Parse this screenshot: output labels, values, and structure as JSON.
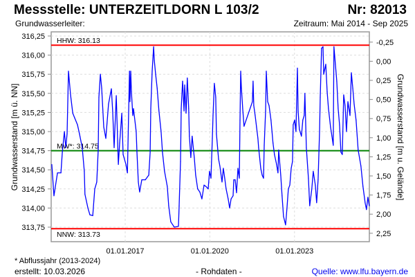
{
  "header": {
    "title": "Messstelle: UNTERZEITLDORN L 103/2",
    "number": "Nr: 82013",
    "aquifer": "Grundwasserleiter:",
    "period": "Zeitraum: Mai 2014 - Sep 2025"
  },
  "footer": {
    "note": "* Abflussjahr (2013-2024)",
    "created": "erstellt:  10.03.2026",
    "raw": "- Rohdaten -",
    "source": "Quelle: www.lfu.bayern.de"
  },
  "colors": {
    "series": "#0000ff",
    "hhw": "#ff0000",
    "nnw": "#ff0000",
    "mw": "#008000",
    "source_link": "#0000ee"
  },
  "chart_data": {
    "type": "line",
    "xlabel": "",
    "ylabel": "Grundwasserstand [m ü. NN]",
    "ylabel_right": "Grundwasserstand [m u. Gelände]",
    "xlim": [
      "2014-05-01",
      "2025-08-31"
    ],
    "ylim": [
      313.56,
      316.3
    ],
    "grid": true,
    "x_ticks": [
      {
        "date": "2017-01-01",
        "label": "01.01.2017"
      },
      {
        "date": "2020-01-01",
        "label": "01.01.2020"
      },
      {
        "date": "2023-01-01",
        "label": "01.01.2023"
      }
    ],
    "y_ticks": [
      316.25,
      316.0,
      315.75,
      315.5,
      315.25,
      315.0,
      314.75,
      314.5,
      314.25,
      314.0,
      313.75
    ],
    "y_tick_labels": [
      "316,25",
      "316,00",
      "315,75",
      "315,50",
      "315,25",
      "315,00",
      "314,75",
      "314,50",
      "314,25",
      "314,00",
      "313,75"
    ],
    "y_right_ticks": [
      -0.25,
      0.0,
      0.25,
      0.5,
      0.75,
      1.0,
      1.25,
      1.5,
      1.75,
      2.0,
      2.25
    ],
    "y_right_tick_labels": [
      "-0,25",
      "0,00",
      "0,25",
      "0,50",
      "0,75",
      "1,00",
      "1,25",
      "1,50",
      "1,75",
      "2,00",
      "2,25"
    ],
    "reference_lines": [
      {
        "name": "HHW",
        "label": "HHW: 316.13",
        "value": 316.13,
        "color": "#ff0000"
      },
      {
        "name": "MW",
        "label": "MW*: 314.75",
        "value": 314.75,
        "color": "#008000"
      },
      {
        "name": "NNW",
        "label": "NNW: 313.73",
        "value": 313.73,
        "color": "#ff0000"
      }
    ],
    "series": [
      {
        "color": "#0000ff",
        "points": [
          [
            "2014-05-27",
            314.57
          ],
          [
            "2014-06-24",
            314.16
          ],
          [
            "2014-08-08",
            314.46
          ],
          [
            "2014-09-22",
            314.46
          ],
          [
            "2014-10-10",
            314.73
          ],
          [
            "2014-11-06",
            315.0
          ],
          [
            "2014-11-24",
            314.79
          ],
          [
            "2014-12-11",
            314.97
          ],
          [
            "2014-12-29",
            315.79
          ],
          [
            "2015-01-25",
            315.48
          ],
          [
            "2015-02-22",
            315.24
          ],
          [
            "2015-03-18",
            315.18
          ],
          [
            "2015-04-24",
            315.09
          ],
          [
            "2015-05-20",
            314.97
          ],
          [
            "2015-06-25",
            314.79
          ],
          [
            "2015-07-22",
            314.48
          ],
          [
            "2015-07-30",
            314.18
          ],
          [
            "2015-09-06",
            314.0
          ],
          [
            "2015-10-02",
            313.91
          ],
          [
            "2015-11-08",
            313.9
          ],
          [
            "2015-12-04",
            314.25
          ],
          [
            "2015-12-30",
            314.34
          ],
          [
            "2016-01-18",
            314.76
          ],
          [
            "2016-01-27",
            315.45
          ],
          [
            "2016-02-14",
            315.75
          ],
          [
            "2016-03-02",
            315.57
          ],
          [
            "2016-03-29",
            315.06
          ],
          [
            "2016-04-25",
            314.91
          ],
          [
            "2016-05-30",
            315.36
          ],
          [
            "2016-07-06",
            315.56
          ],
          [
            "2016-07-23",
            315.27
          ],
          [
            "2016-08-11",
            314.79
          ],
          [
            "2016-09-07",
            315.47
          ],
          [
            "2016-10-04",
            314.57
          ],
          [
            "2016-10-21",
            314.85
          ],
          [
            "2016-11-18",
            315.24
          ],
          [
            "2016-12-05",
            314.7
          ],
          [
            "2017-01-11",
            314.57
          ],
          [
            "2017-01-29",
            314.46
          ],
          [
            "2017-02-25",
            315.79
          ],
          [
            "2017-03-04",
            315.39
          ],
          [
            "2017-03-13",
            315.79
          ],
          [
            "2017-03-22",
            315.52
          ],
          [
            "2017-04-09",
            315.21
          ],
          [
            "2017-04-18",
            315.3
          ],
          [
            "2017-05-23",
            315.0
          ],
          [
            "2017-06-02",
            314.73
          ],
          [
            "2017-06-20",
            314.34
          ],
          [
            "2017-07-07",
            314.21
          ],
          [
            "2017-08-04",
            314.37
          ],
          [
            "2017-09-18",
            314.37
          ],
          [
            "2017-11-02",
            314.43
          ],
          [
            "2017-11-20",
            314.73
          ],
          [
            "2017-11-28",
            315.3
          ],
          [
            "2017-12-16",
            315.79
          ],
          [
            "2018-01-04",
            316.11
          ],
          [
            "2018-01-13",
            315.93
          ],
          [
            "2018-01-30",
            315.75
          ],
          [
            "2018-02-18",
            315.57
          ],
          [
            "2018-03-14",
            315.27
          ],
          [
            "2018-04-10",
            315.0
          ],
          [
            "2018-04-28",
            314.73
          ],
          [
            "2018-05-25",
            314.48
          ],
          [
            "2018-06-30",
            314.28
          ],
          [
            "2018-07-18",
            314.03
          ],
          [
            "2018-08-14",
            313.82
          ],
          [
            "2018-09-28",
            313.75
          ],
          [
            "2018-11-21",
            313.76
          ],
          [
            "2018-11-30",
            314.03
          ],
          [
            "2018-12-18",
            314.61
          ],
          [
            "2018-12-27",
            315.3
          ],
          [
            "2019-01-14",
            315.66
          ],
          [
            "2019-02-02",
            315.27
          ],
          [
            "2019-02-10",
            315.61
          ],
          [
            "2019-02-28",
            315.24
          ],
          [
            "2019-03-16",
            315.7
          ],
          [
            "2019-04-03",
            315.3
          ],
          [
            "2019-04-12",
            314.94
          ],
          [
            "2019-04-30",
            314.66
          ],
          [
            "2019-05-17",
            314.94
          ],
          [
            "2019-06-14",
            314.66
          ],
          [
            "2019-07-02",
            314.43
          ],
          [
            "2019-07-28",
            314.25
          ],
          [
            "2019-08-25",
            314.21
          ],
          [
            "2019-09-21",
            314.12
          ],
          [
            "2019-10-18",
            314.3
          ],
          [
            "2019-11-14",
            314.28
          ],
          [
            "2019-12-11",
            314.25
          ],
          [
            "2019-12-28",
            314.48
          ],
          [
            "2020-01-16",
            314.39
          ],
          [
            "2020-02-03",
            314.91
          ],
          [
            "2020-02-12",
            315.21
          ],
          [
            "2020-02-29",
            315.63
          ],
          [
            "2020-03-18",
            315.45
          ],
          [
            "2020-03-27",
            314.97
          ],
          [
            "2020-04-23",
            314.64
          ],
          [
            "2020-05-10",
            314.55
          ],
          [
            "2020-06-07",
            314.34
          ],
          [
            "2020-06-24",
            314.52
          ],
          [
            "2020-07-12",
            314.39
          ],
          [
            "2020-07-30",
            314.25
          ],
          [
            "2020-08-26",
            314.12
          ],
          [
            "2020-09-14",
            314.0
          ],
          [
            "2020-10-02",
            314.12
          ],
          [
            "2020-10-28",
            314.16
          ],
          [
            "2020-11-06",
            314.37
          ],
          [
            "2020-11-24",
            314.37
          ],
          [
            "2020-12-12",
            314.2
          ],
          [
            "2020-12-30",
            314.52
          ],
          [
            "2021-01-17",
            314.39
          ],
          [
            "2021-01-26",
            315.15
          ],
          [
            "2021-02-04",
            315.79
          ],
          [
            "2021-02-13",
            315.57
          ],
          [
            "2021-03-02",
            315.3
          ],
          [
            "2021-03-19",
            315.07
          ],
          [
            "2021-07-05",
            315.39
          ],
          [
            "2021-07-14",
            315.66
          ],
          [
            "2021-07-23",
            315.34
          ],
          [
            "2021-08-10",
            315.21
          ],
          [
            "2021-08-28",
            315.06
          ],
          [
            "2021-09-15",
            314.91
          ],
          [
            "2021-09-24",
            314.79
          ],
          [
            "2021-10-21",
            314.52
          ],
          [
            "2021-11-08",
            314.43
          ],
          [
            "2021-11-26",
            314.39
          ],
          [
            "2021-12-05",
            314.82
          ],
          [
            "2021-12-23",
            315.27
          ],
          [
            "2022-01-01",
            315.79
          ],
          [
            "2022-01-19",
            315.39
          ],
          [
            "2022-02-06",
            315.34
          ],
          [
            "2022-03-03",
            315.15
          ],
          [
            "2022-03-29",
            314.85
          ],
          [
            "2022-04-17",
            314.7
          ],
          [
            "2022-05-14",
            314.57
          ],
          [
            "2022-06-01",
            314.46
          ],
          [
            "2022-06-10",
            314.76
          ],
          [
            "2022-07-07",
            314.43
          ],
          [
            "2022-07-24",
            314.16
          ],
          [
            "2022-08-12",
            313.89
          ],
          [
            "2022-09-08",
            313.78
          ],
          [
            "2022-09-26",
            314.0
          ],
          [
            "2022-10-14",
            314.25
          ],
          [
            "2022-11-01",
            314.3
          ],
          [
            "2022-11-19",
            314.52
          ],
          [
            "2022-12-06",
            314.61
          ],
          [
            "2022-12-15",
            315.09
          ],
          [
            "2023-01-03",
            315.15
          ],
          [
            "2023-01-20",
            315.0
          ],
          [
            "2023-02-08",
            315.83
          ],
          [
            "2023-02-17",
            315.27
          ],
          [
            "2023-03-05",
            315.03
          ],
          [
            "2023-04-01",
            314.94
          ],
          [
            "2023-04-19",
            315.15
          ],
          [
            "2023-05-07",
            315.21
          ],
          [
            "2023-05-16",
            315.5
          ],
          [
            "2023-06-03",
            314.79
          ],
          [
            "2023-06-30",
            314.39
          ],
          [
            "2023-07-17",
            314.03
          ],
          [
            "2023-08-13",
            314.25
          ],
          [
            "2023-09-01",
            314.48
          ],
          [
            "2023-09-28",
            314.3
          ],
          [
            "2023-10-15",
            314.07
          ],
          [
            "2023-11-03",
            314.37
          ],
          [
            "2023-11-21",
            315.0
          ],
          [
            "2023-11-30",
            315.45
          ],
          [
            "2023-12-17",
            316.09
          ],
          [
            "2024-01-05",
            316.11
          ],
          [
            "2024-01-14",
            315.75
          ],
          [
            "2024-02-10",
            315.88
          ],
          [
            "2024-02-28",
            315.52
          ],
          [
            "2024-03-16",
            315.3
          ],
          [
            "2024-04-12",
            315.06
          ],
          [
            "2024-04-30",
            314.94
          ],
          [
            "2024-05-17",
            314.82
          ],
          [
            "2024-05-26",
            316.11
          ],
          [
            "2024-06-13",
            315.88
          ],
          [
            "2024-07-01",
            315.66
          ],
          [
            "2024-07-19",
            315.3
          ],
          [
            "2024-08-06",
            315.09
          ],
          [
            "2024-08-24",
            314.73
          ],
          [
            "2024-09-11",
            314.7
          ],
          [
            "2024-09-29",
            315.48
          ],
          [
            "2024-10-17",
            315.34
          ],
          [
            "2024-11-04",
            315.0
          ],
          [
            "2024-11-22",
            315.39
          ],
          [
            "2024-12-19",
            315.21
          ],
          [
            "2025-01-06",
            315.77
          ],
          [
            "2025-01-24",
            315.57
          ],
          [
            "2025-02-11",
            315.36
          ],
          [
            "2025-03-08",
            315.15
          ],
          [
            "2025-04-04",
            314.76
          ],
          [
            "2025-05-10",
            314.55
          ],
          [
            "2025-06-06",
            314.28
          ],
          [
            "2025-07-03",
            314.07
          ],
          [
            "2025-07-20",
            313.98
          ],
          [
            "2025-08-08",
            314.14
          ],
          [
            "2025-08-26",
            314.03
          ]
        ]
      }
    ]
  }
}
